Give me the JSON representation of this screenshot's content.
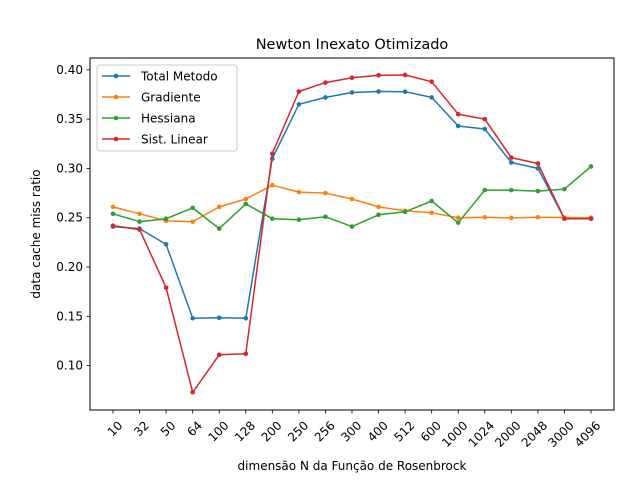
{
  "chart_data": {
    "type": "line",
    "title": "Newton Inexato Otimizado",
    "xlabel": "dimensão N da Função de Rosenbrock",
    "ylabel": "data cache miss ratio",
    "categories": [
      "10",
      "32",
      "50",
      "64",
      "100",
      "128",
      "200",
      "250",
      "256",
      "300",
      "400",
      "512",
      "600",
      "1000",
      "1024",
      "2000",
      "2048",
      "3000",
      "4096"
    ],
    "ylim": [
      0.055,
      0.412
    ],
    "yticks": [
      0.1,
      0.15,
      0.2,
      0.25,
      0.3,
      0.35,
      0.4
    ],
    "ytick_labels": [
      "0.10",
      "0.15",
      "0.20",
      "0.25",
      "0.30",
      "0.35",
      "0.40"
    ],
    "legend_position": "top-left",
    "grid": false,
    "series": [
      {
        "name": "Total Metodo",
        "color": "#1f77b4",
        "values": [
          0.241,
          0.239,
          0.223,
          0.148,
          0.1485,
          0.148,
          0.31,
          0.365,
          0.372,
          0.377,
          0.378,
          0.3778,
          0.372,
          0.343,
          0.34,
          0.306,
          0.3,
          0.249,
          0.249
        ]
      },
      {
        "name": "Gradiente",
        "color": "#ff7f0e",
        "values": [
          0.261,
          0.254,
          0.247,
          0.246,
          0.261,
          0.269,
          0.283,
          0.276,
          0.275,
          0.269,
          0.261,
          0.257,
          0.255,
          0.25,
          0.2505,
          0.2498,
          0.2505,
          0.2502,
          0.25
        ]
      },
      {
        "name": "Hessiana",
        "color": "#2ca02c",
        "values": [
          0.254,
          0.246,
          0.249,
          0.26,
          0.239,
          0.264,
          0.249,
          0.248,
          0.251,
          0.241,
          0.253,
          0.256,
          0.267,
          0.245,
          0.278,
          0.278,
          0.277,
          0.279,
          0.302
        ]
      },
      {
        "name": "Sist. Linear",
        "color": "#d62728",
        "values": [
          0.242,
          0.238,
          0.179,
          0.073,
          0.111,
          0.112,
          0.315,
          0.378,
          0.387,
          0.392,
          0.3945,
          0.3948,
          0.388,
          0.355,
          0.35,
          0.311,
          0.305,
          0.249,
          0.249
        ]
      }
    ]
  }
}
